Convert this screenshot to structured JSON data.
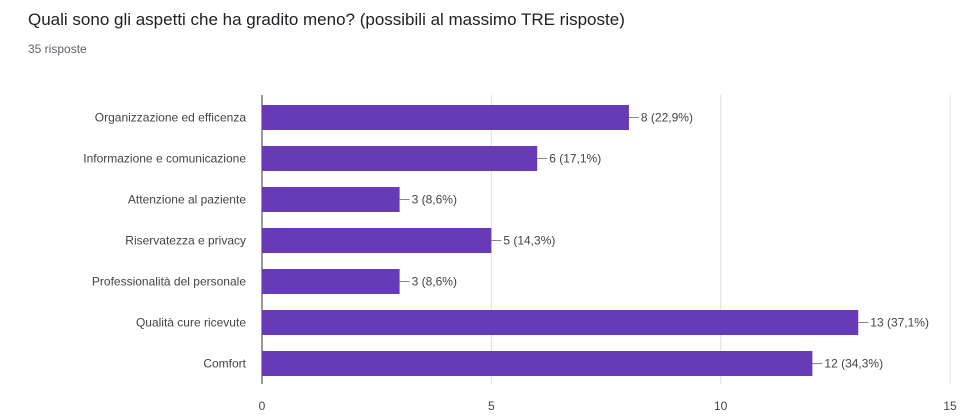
{
  "question": {
    "title": "Quali sono gli aspetti che ha gradito meno?  (possibili al massimo TRE risposte)",
    "response_count": "35 risposte"
  },
  "chart_data": {
    "type": "bar",
    "orientation": "horizontal",
    "categories": [
      "Organizzazione ed efficenza",
      "Informazione e comunicazione",
      "Attenzione al paziente",
      "Riservatezza e privacy",
      "Professionalità del personale",
      "Qualità cure ricevute",
      "Comfort"
    ],
    "values": [
      8,
      6,
      3,
      5,
      3,
      13,
      12
    ],
    "data_labels": [
      "8 (22,9%)",
      "6 (17,1%)",
      "3 (8,6%)",
      "5 (14,3%)",
      "3 (8,6%)",
      "13 (37,1%)",
      "12 (34,3%)"
    ],
    "xlim": [
      0,
      15
    ],
    "xticks": [
      "0",
      "5",
      "10",
      "15"
    ],
    "xtick_values": [
      0,
      5,
      10,
      15
    ],
    "grid": true,
    "bar_color": "#673ab7"
  }
}
